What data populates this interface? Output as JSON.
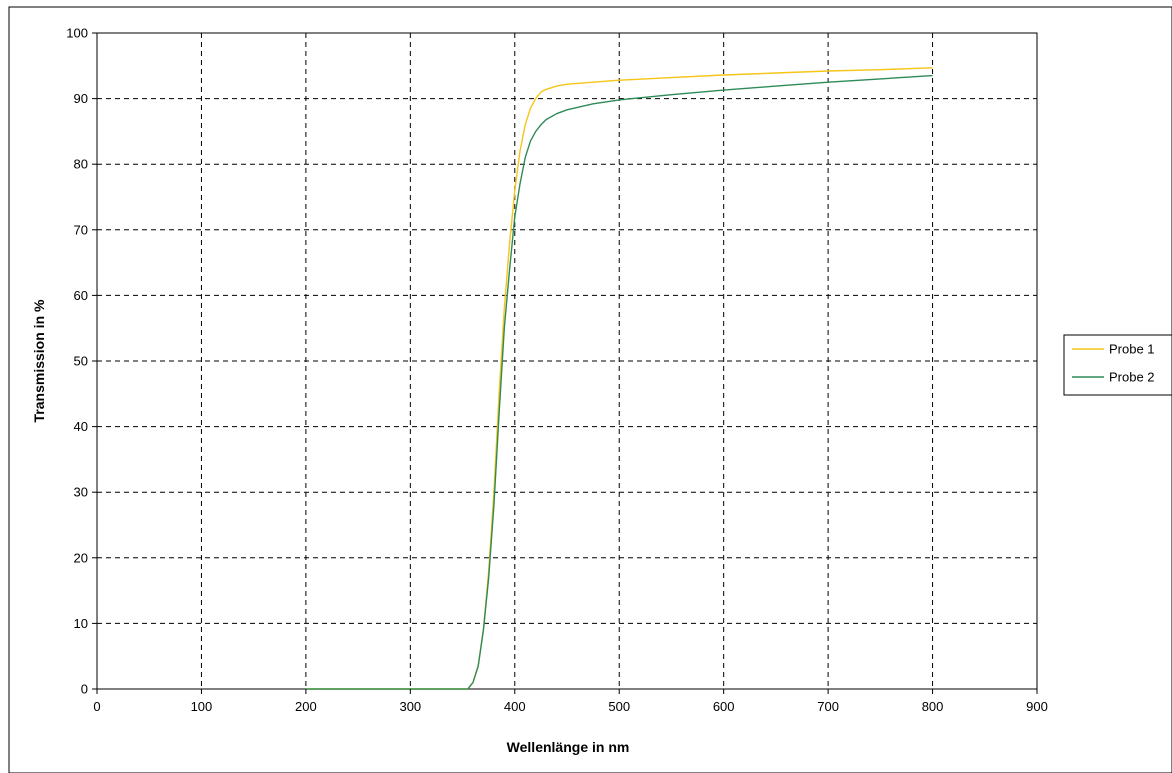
{
  "chart_data": {
    "type": "line",
    "title": "",
    "xlabel": "Wellenlänge in nm",
    "ylabel": "Transmission in %",
    "xlim": [
      0,
      900
    ],
    "ylim": [
      0,
      100
    ],
    "x_ticks": [
      0,
      100,
      200,
      300,
      400,
      500,
      600,
      700,
      800,
      900
    ],
    "y_ticks": [
      0,
      10,
      20,
      30,
      40,
      50,
      60,
      70,
      80,
      90,
      100
    ],
    "grid": true,
    "grid_style": "dashed",
    "legend_position": "right",
    "series": [
      {
        "name": "Probe 1",
        "color": "#f5c518",
        "x": [
          200,
          300,
          355,
          360,
          365,
          370,
          375,
          380,
          385,
          390,
          395,
          400,
          405,
          410,
          415,
          420,
          425,
          430,
          440,
          450,
          475,
          500,
          550,
          600,
          650,
          700,
          750,
          800
        ],
        "y": [
          0,
          0,
          0,
          1,
          3.5,
          9,
          18,
          30,
          45,
          58,
          68,
          76,
          82,
          86,
          88.5,
          90,
          91,
          91.4,
          91.9,
          92.2,
          92.5,
          92.8,
          93.2,
          93.6,
          93.9,
          94.2,
          94.4,
          94.7
        ]
      },
      {
        "name": "Probe 2",
        "color": "#2e8b57",
        "x": [
          200,
          300,
          355,
          360,
          365,
          370,
          375,
          380,
          385,
          390,
          395,
          400,
          405,
          410,
          415,
          420,
          425,
          430,
          440,
          450,
          475,
          500,
          550,
          600,
          650,
          700,
          750,
          800
        ],
        "y": [
          0,
          0,
          0,
          1,
          3.5,
          9,
          17,
          28,
          42,
          55,
          64,
          72,
          77,
          81,
          83.5,
          85,
          86,
          86.8,
          87.7,
          88.3,
          89.2,
          89.8,
          90.6,
          91.3,
          91.9,
          92.5,
          93,
          93.5
        ]
      }
    ]
  }
}
